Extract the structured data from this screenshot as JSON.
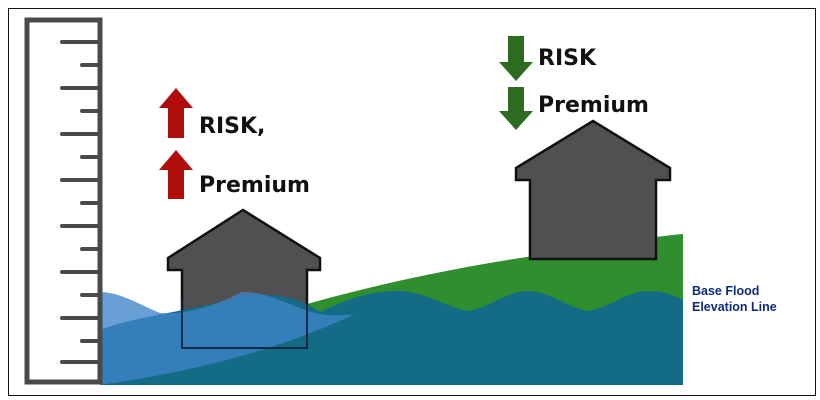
{
  "left_house": {
    "risk_label": "RISK,",
    "premium_label": "Premium",
    "arrow_color": "#b00d0d",
    "direction": "up"
  },
  "right_house": {
    "risk_label": "RISK",
    "premium_label": "Premium",
    "arrow_color": "#2d6b1f",
    "direction": "down"
  },
  "legend": {
    "line1": "Base Flood",
    "line2": "Elevation Line",
    "color": "#0e2b7c"
  },
  "colors": {
    "ground": "#2f8f2f",
    "water_deep": "#136b85",
    "water_light": "#3d84c8",
    "house": "#505052",
    "ruler": "#ffffff"
  },
  "icons": {
    "ruler": "measuring-ruler",
    "house_left": "house-icon",
    "house_right": "house-icon"
  }
}
